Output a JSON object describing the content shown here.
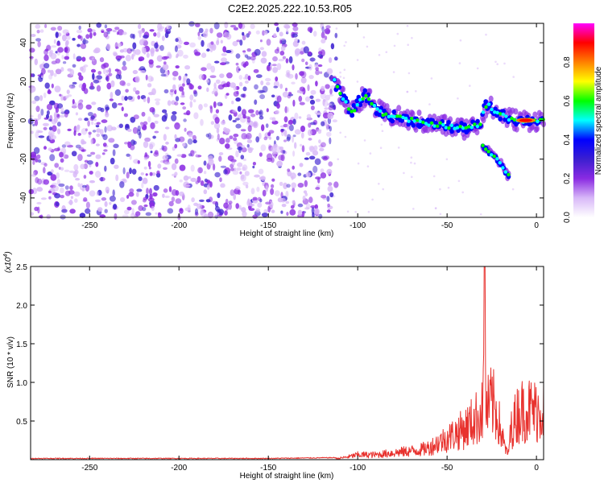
{
  "title": "C2E2.2025.222.10.53.R05",
  "colors": {
    "snr_line": "#e8322e",
    "colormap": [
      "#ffffff",
      "#d8b8f8",
      "#8a2be2",
      "#3b1fd0",
      "#0000ff",
      "#00ffff",
      "#00ff00",
      "#ffff00",
      "#ff8000",
      "#ff0000",
      "#ff00ff"
    ]
  },
  "chart_data": [
    {
      "type": "heatmap",
      "title": "C2E2.2025.222.10.53.R05",
      "xlabel": "Height of straight line (km)",
      "ylabel": "Frequency (Hz)",
      "xlim": [
        -283,
        4
      ],
      "ylim": [
        -50,
        50
      ],
      "x_ticks": [
        "-250",
        "-200",
        "-150",
        "-100",
        "-50",
        "0"
      ],
      "y_ticks": [
        "-40",
        "-20",
        "0",
        "20",
        "40"
      ],
      "colorbar": {
        "label": "Normalized spectral amplitude",
        "range": [
          0,
          1
        ],
        "ticks": [
          "0.0",
          "0.2",
          "0.4",
          "0.6",
          "0.8"
        ]
      },
      "features": {
        "noise_region_x": [
          -283,
          -112
        ],
        "main_ridge": [
          {
            "x": -113,
            "y": 20
          },
          {
            "x": -110,
            "y": 14
          },
          {
            "x": -106,
            "y": 8
          },
          {
            "x": -103,
            "y": 4
          },
          {
            "x": -100,
            "y": 9
          },
          {
            "x": -96,
            "y": 13
          },
          {
            "x": -93,
            "y": 10
          },
          {
            "x": -90,
            "y": 6
          },
          {
            "x": -85,
            "y": 3
          },
          {
            "x": -80,
            "y": 2
          },
          {
            "x": -75,
            "y": 1
          },
          {
            "x": -70,
            "y": 0
          },
          {
            "x": -65,
            "y": -1
          },
          {
            "x": -60,
            "y": -2
          },
          {
            "x": -55,
            "y": -2
          },
          {
            "x": -50,
            "y": -3
          },
          {
            "x": -45,
            "y": -4
          },
          {
            "x": -40,
            "y": -4
          },
          {
            "x": -35,
            "y": -3
          },
          {
            "x": -31,
            "y": -2
          },
          {
            "x": -29,
            "y": 7
          },
          {
            "x": -27,
            "y": 8
          },
          {
            "x": -24,
            "y": 5
          },
          {
            "x": -20,
            "y": 3
          },
          {
            "x": -15,
            "y": 1
          },
          {
            "x": -10,
            "y": 0
          },
          {
            "x": -5,
            "y": 0
          },
          {
            "x": 0,
            "y": 0
          },
          {
            "x": 4,
            "y": 0
          }
        ],
        "secondary_ridge": [
          {
            "x": -30,
            "y": -13
          },
          {
            "x": -26,
            "y": -17
          },
          {
            "x": -22,
            "y": -20
          },
          {
            "x": -19,
            "y": -24
          },
          {
            "x": -17,
            "y": -27
          },
          {
            "x": -15,
            "y": -29
          }
        ],
        "peak": {
          "x": -6,
          "y": 0,
          "value": 1.0
        }
      }
    },
    {
      "type": "line",
      "xlabel": "Height of straight line (km)",
      "ylabel": "SNR (10 * v/v)",
      "y_multiplier_label": "(x10",
      "y_multiplier_exp": "4",
      "y_multiplier_close": ")",
      "xlim": [
        -283,
        4
      ],
      "ylim": [
        0,
        2.5
      ],
      "x_ticks": [
        "-250",
        "-200",
        "-150",
        "-100",
        "-50",
        "0"
      ],
      "y_ticks": [
        "0.5",
        "1.0",
        "1.5",
        "2.0",
        "2.5"
      ],
      "series": [
        {
          "envelope": [
            {
              "x": -283,
              "y": 0.01
            },
            {
              "x": -200,
              "y": 0.01
            },
            {
              "x": -150,
              "y": 0.01
            },
            {
              "x": -112,
              "y": 0.02
            },
            {
              "x": -105,
              "y": 0.06
            },
            {
              "x": -100,
              "y": 0.1
            },
            {
              "x": -90,
              "y": 0.1
            },
            {
              "x": -80,
              "y": 0.14
            },
            {
              "x": -70,
              "y": 0.18
            },
            {
              "x": -65,
              "y": 0.2
            },
            {
              "x": -60,
              "y": 0.25
            },
            {
              "x": -55,
              "y": 0.35
            },
            {
              "x": -50,
              "y": 0.45
            },
            {
              "x": -45,
              "y": 0.55
            },
            {
              "x": -40,
              "y": 0.65
            },
            {
              "x": -36,
              "y": 0.78
            },
            {
              "x": -33,
              "y": 0.88
            },
            {
              "x": -30,
              "y": 1.0
            },
            {
              "x": -29,
              "y": 2.5
            },
            {
              "x": -28,
              "y": 1.0
            },
            {
              "x": -25,
              "y": 1.2
            },
            {
              "x": -22,
              "y": 0.95
            },
            {
              "x": -20,
              "y": 0.6
            },
            {
              "x": -18,
              "y": 0.3
            },
            {
              "x": -16,
              "y": 0.1
            },
            {
              "x": -14,
              "y": 0.65
            },
            {
              "x": -10,
              "y": 1.0
            },
            {
              "x": -5,
              "y": 1.05
            },
            {
              "x": 0,
              "y": 1.0
            },
            {
              "x": 4,
              "y": 1.1
            }
          ]
        }
      ]
    }
  ]
}
